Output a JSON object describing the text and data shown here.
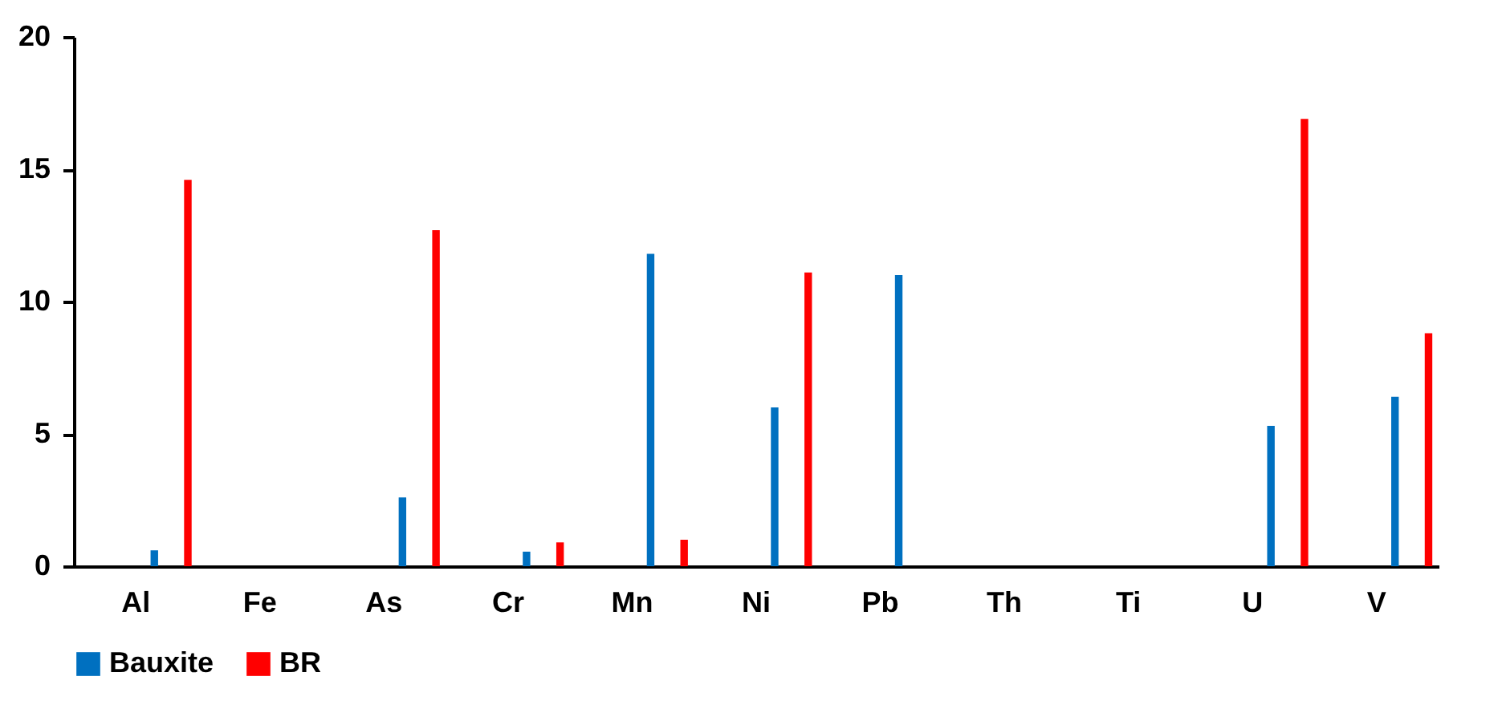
{
  "chart_data": {
    "type": "bar",
    "categories": [
      "Al",
      "Fe",
      "As",
      "Cr",
      "Mn",
      "Ni",
      "Pb",
      "Th",
      "Ti",
      "U",
      "V"
    ],
    "series": [
      {
        "name": "Bauxite",
        "color": "#0070c0",
        "values": [
          0.6,
          0,
          2.6,
          0.55,
          11.8,
          6.0,
          11.0,
          0,
          0,
          5.3,
          6.4
        ]
      },
      {
        "name": "BR",
        "color": "#ff0000",
        "values": [
          14.6,
          0,
          12.7,
          0.9,
          1.0,
          11.1,
          0,
          0,
          0,
          16.9,
          8.8
        ]
      }
    ],
    "ylim": [
      0,
      20
    ],
    "yticks": [
      0,
      5,
      10,
      15,
      20
    ],
    "grid": false,
    "legend": "bottom"
  }
}
